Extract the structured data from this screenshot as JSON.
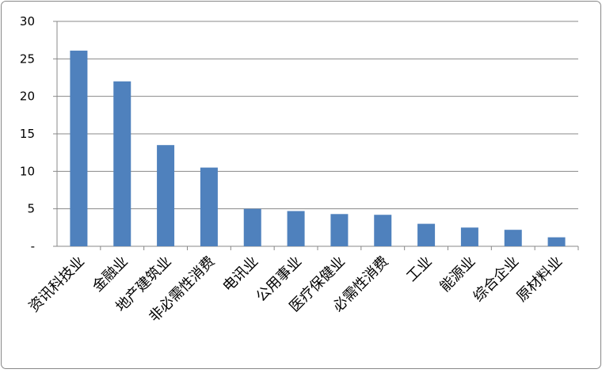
{
  "chart_data": {
    "type": "bar",
    "categories": [
      "资讯科技业",
      "金融业",
      "地产建筑业",
      "非必需性消费",
      "电讯业",
      "公用事业",
      "医疗保健业",
      "必需性消费",
      "工业",
      "能源业",
      "综合企业",
      "原材料业"
    ],
    "values": [
      26.1,
      22,
      13.5,
      10.5,
      5,
      4.7,
      4.3,
      4.2,
      3,
      2.5,
      2.2,
      1.2
    ],
    "color": "#4f81bd",
    "ylim": [
      0,
      30
    ],
    "yticks": [
      {
        "value": 0,
        "label": "-"
      },
      5,
      10,
      15,
      20,
      25,
      30
    ],
    "grid": true
  }
}
